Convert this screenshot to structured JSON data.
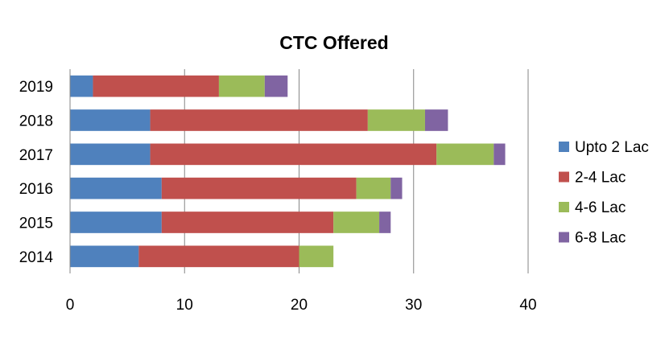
{
  "chart_data": {
    "type": "bar",
    "orientation": "horizontal",
    "stacked": true,
    "title": "CTC Offered",
    "xlabel": "",
    "ylabel": "",
    "xlim": [
      0,
      40
    ],
    "x_ticks": [
      0,
      10,
      20,
      30,
      40
    ],
    "grid": "vertical",
    "legend_position": "right",
    "categories": [
      "2019",
      "2018",
      "2017",
      "2016",
      "2015",
      "2014"
    ],
    "series": [
      {
        "name": "Upto 2 Lac",
        "color": "#4f81bd",
        "values": [
          2,
          7,
          7,
          8,
          8,
          6
        ]
      },
      {
        "name": "2-4 Lac",
        "color": "#c0504d",
        "values": [
          11,
          19,
          25,
          17,
          15,
          14
        ]
      },
      {
        "name": "4-6 Lac",
        "color": "#9bbb59",
        "values": [
          4,
          5,
          5,
          3,
          4,
          3
        ]
      },
      {
        "name": "6-8 Lac",
        "color": "#8064a2",
        "values": [
          2,
          2,
          1,
          1,
          1,
          0
        ]
      }
    ]
  }
}
